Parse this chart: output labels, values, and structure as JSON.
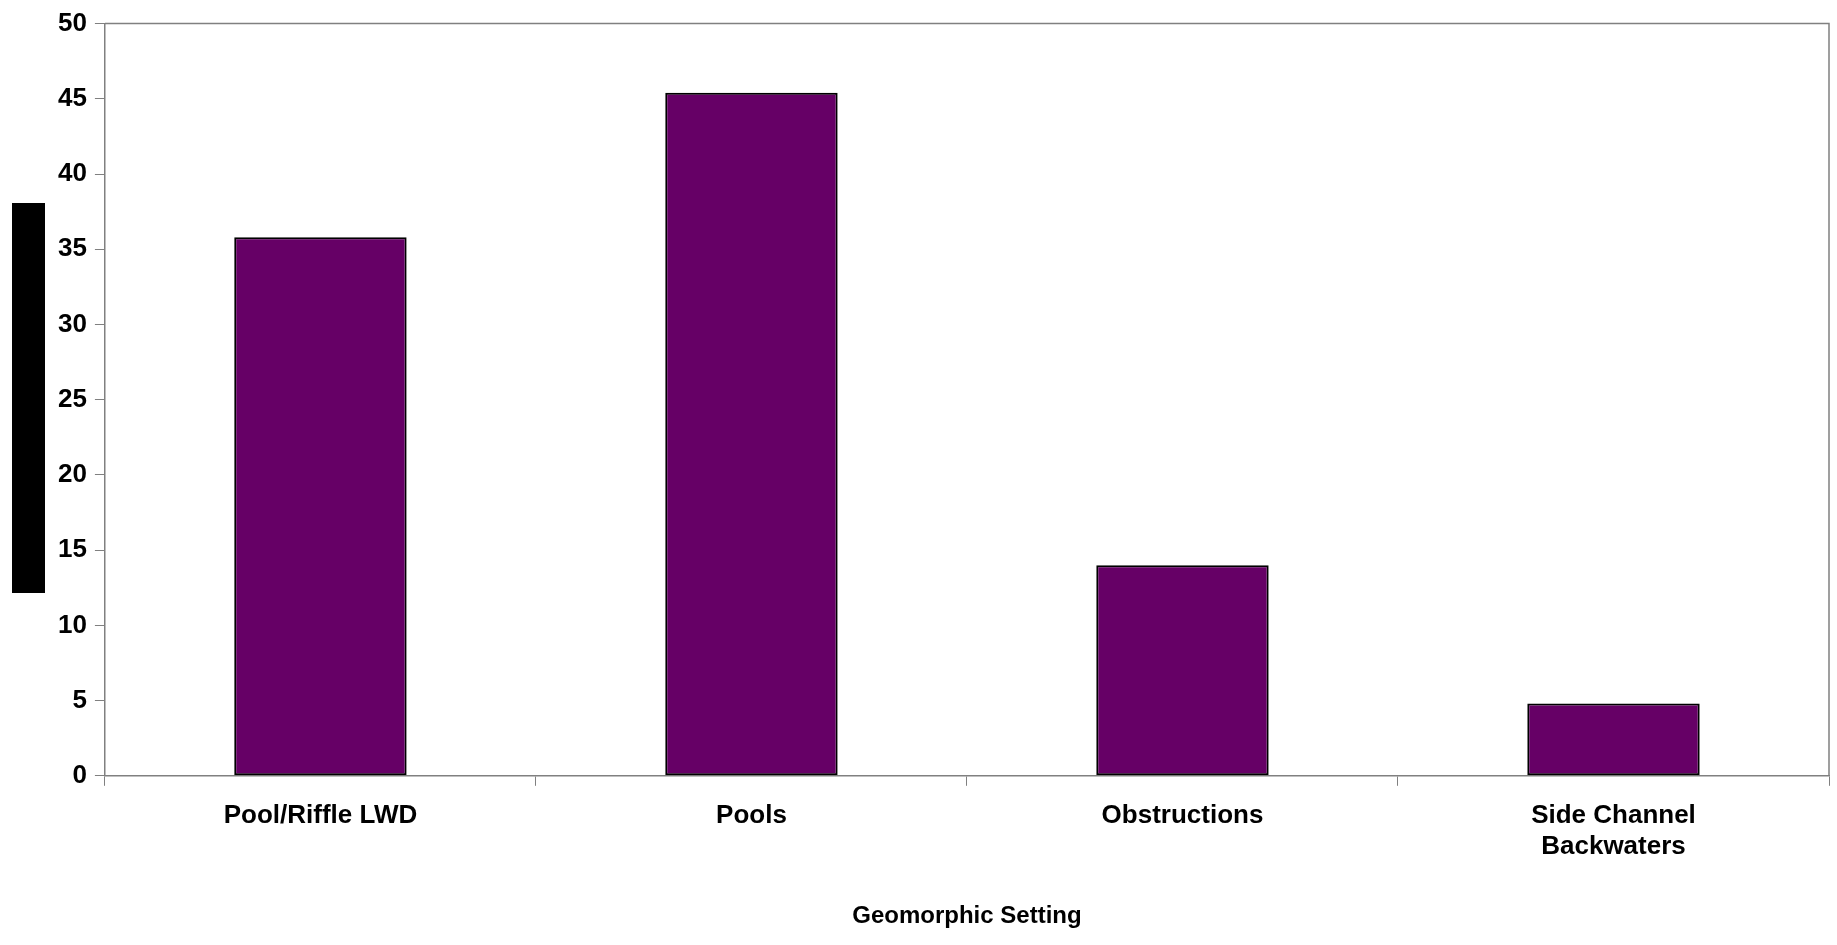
{
  "chart_data": {
    "type": "bar",
    "xlabel": "Geomorphic Setting",
    "categories": [
      "Pool/Riffle LWD",
      "Pools",
      "Obstructions",
      "Side Channel Backwaters"
    ],
    "values": [
      35.8,
      45.4,
      14.0,
      4.8
    ],
    "color": "#660066",
    "ylim": [
      0,
      50
    ],
    "yticks": [
      0,
      5,
      10,
      15,
      20,
      25,
      30,
      35,
      40,
      45,
      50
    ],
    "grid": false,
    "legend": false
  }
}
